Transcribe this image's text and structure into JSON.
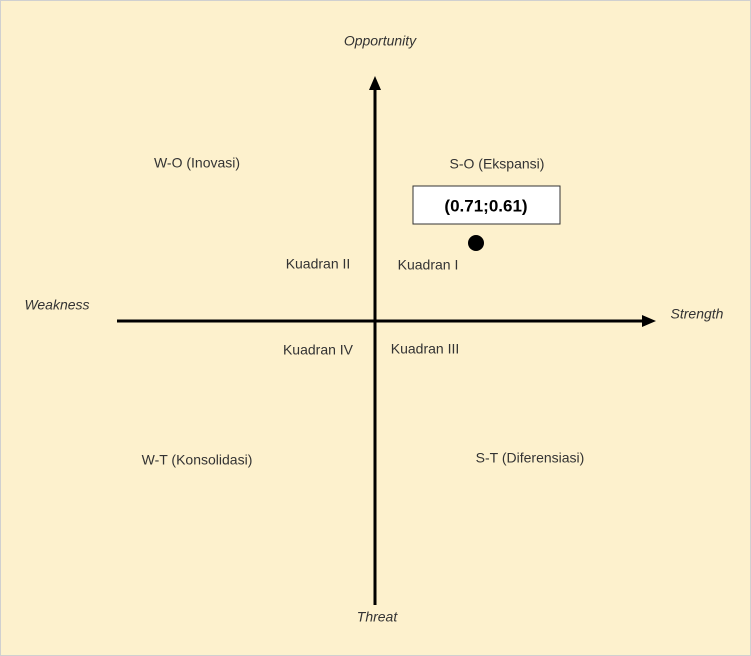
{
  "axes": {
    "top": "Opportunity",
    "bottom": "Threat",
    "left": "Weakness",
    "right": "Strength"
  },
  "strategies": {
    "wo": "W-O (Inovasi)",
    "so": "S-O (Ekspansi)",
    "wt": "W-T (Konsolidasi)",
    "st": "S-T (Diferensiasi)"
  },
  "quadrants": {
    "q1": "Kuadran I",
    "q2": "Kuadran II",
    "q3": "Kuadran III",
    "q4": "Kuadran IV"
  },
  "point": {
    "label": "(0.71;0.61)"
  }
}
